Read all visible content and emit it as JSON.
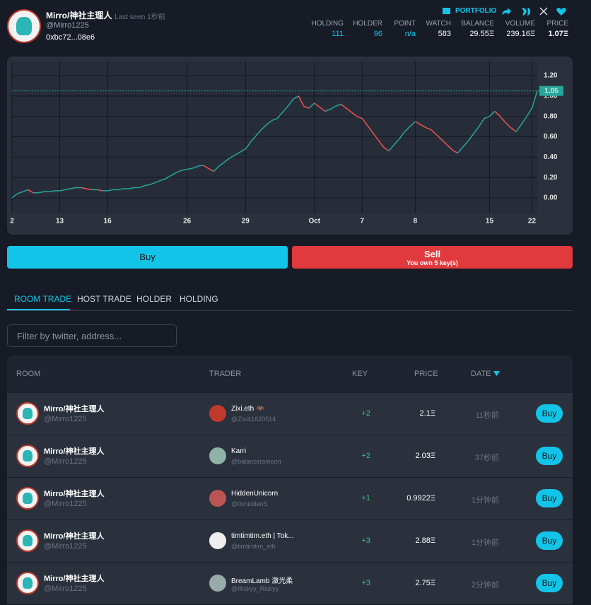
{
  "header": {
    "name": "Mirro/神社主理人",
    "last_seen": "Last seen 1秒前",
    "handle": "@Mirro1225",
    "address": "0xbc72...08e6",
    "portfolio": "PORTFOLIO",
    "stats": [
      {
        "label": "HOLDING",
        "value": "111"
      },
      {
        "label": "HOLDER",
        "value": "96"
      },
      {
        "label": "POINT",
        "value": "n/a"
      },
      {
        "label": "WATCH",
        "value": "583"
      },
      {
        "label": "BALANCE",
        "value": "29.55Ξ"
      },
      {
        "label": "VOLUME",
        "value": "239.16Ξ"
      },
      {
        "label": "PRICE",
        "value": "1.07Ξ"
      }
    ]
  },
  "chart_data": {
    "type": "line",
    "up_color": "#26a69a",
    "down_color": "#ef5350",
    "grid": true,
    "price_line": 1.05,
    "values": [
      0.0,
      0.04,
      0.06,
      0.08,
      0.05,
      0.05,
      0.06,
      0.06,
      0.07,
      0.07,
      0.08,
      0.09,
      0.1,
      0.1,
      0.09,
      0.08,
      0.08,
      0.07,
      0.07,
      0.08,
      0.08,
      0.09,
      0.09,
      0.1,
      0.1,
      0.12,
      0.13,
      0.15,
      0.17,
      0.19,
      0.22,
      0.25,
      0.27,
      0.28,
      0.29,
      0.31,
      0.32,
      0.29,
      0.26,
      0.31,
      0.35,
      0.39,
      0.42,
      0.45,
      0.48,
      0.55,
      0.61,
      0.67,
      0.72,
      0.76,
      0.78,
      0.84,
      0.9,
      0.97,
      1.0,
      0.9,
      0.88,
      0.93,
      0.89,
      0.85,
      0.87,
      0.9,
      0.92,
      0.88,
      0.84,
      0.8,
      0.78,
      0.71,
      0.64,
      0.57,
      0.5,
      0.46,
      0.52,
      0.58,
      0.65,
      0.7,
      0.75,
      0.72,
      0.69,
      0.67,
      0.62,
      0.57,
      0.52,
      0.47,
      0.44,
      0.5,
      0.56,
      0.63,
      0.7,
      0.78,
      0.8,
      0.85,
      0.8,
      0.74,
      0.69,
      0.65,
      0.72,
      0.8,
      0.88,
      1.05
    ],
    "xlim": [
      0,
      99
    ],
    "xticks": [
      {
        "value": 0,
        "label": "2"
      },
      {
        "value": 9,
        "label": "13"
      },
      {
        "value": 18,
        "label": "16"
      },
      {
        "value": 33,
        "label": "26"
      },
      {
        "value": 44,
        "label": "29"
      },
      {
        "value": 57,
        "label": "Oct"
      },
      {
        "value": 66,
        "label": "7"
      },
      {
        "value": 76,
        "label": "8"
      },
      {
        "value": 90,
        "label": "15"
      },
      {
        "value": 98,
        "label": "22"
      }
    ],
    "ylim": [
      -0.153,
      1.339
    ],
    "yticks": [
      {
        "value": 0,
        "label": "0.00"
      },
      {
        "value": 0.2,
        "label": "0.20"
      },
      {
        "value": 0.4,
        "label": "0.40"
      },
      {
        "value": 0.6,
        "label": "0.60"
      },
      {
        "value": 0.8,
        "label": "0.80"
      },
      {
        "value": 1.0,
        "label": "1.00"
      },
      {
        "value": 1.2,
        "label": "1.20"
      }
    ]
  },
  "actions": {
    "buy": "Buy",
    "sell": "Sell",
    "sell_note": "You own 5 key(s)"
  },
  "tabs": [
    "ROOM TRADE",
    "HOST TRADE",
    "HOLDER",
    "HOLDING"
  ],
  "filter_placeholder": "Filter by twitter, address...",
  "table": {
    "columns": [
      "ROOM",
      "TRADER",
      "KEY",
      "PRICE",
      "DATE"
    ],
    "button": "Buy",
    "rows": [
      {
        "room": "Mirro/神社主理人",
        "room_handle": "@Mirro1225",
        "trader": "Zixi.eth 🦇",
        "trader_handle": "@Zixi41620514",
        "key": "+2",
        "price": "2.1Ξ",
        "date": "11秒前"
      },
      {
        "room": "Mirro/神社主理人",
        "room_handle": "@Mirro1225",
        "trader": "Karri",
        "trader_handle": "@balancersmoon",
        "key": "+2",
        "price": "2.03Ξ",
        "date": "37秒前"
      },
      {
        "room": "Mirro/神社主理人",
        "room_handle": "@Mirro1225",
        "trader": "HiddenUnicorn",
        "trader_handle": "@0xhiddenS",
        "key": "+1",
        "price": "0.9922Ξ",
        "date": "1分钟前"
      },
      {
        "room": "Mirro/神社主理人",
        "room_handle": "@Mirro1225",
        "trader": "timtimtim.eth | Tok...",
        "trader_handle": "@timtimtim_eth",
        "key": "+3",
        "price": "2.88Ξ",
        "date": "1分钟前"
      },
      {
        "room": "Mirro/神社主理人",
        "room_handle": "@Mirro1225",
        "trader": "BreamLamb 瀲光柔",
        "trader_handle": "@Riskyy_Riskyy",
        "key": "+3",
        "price": "2.75Ξ",
        "date": "2分钟前"
      }
    ]
  }
}
